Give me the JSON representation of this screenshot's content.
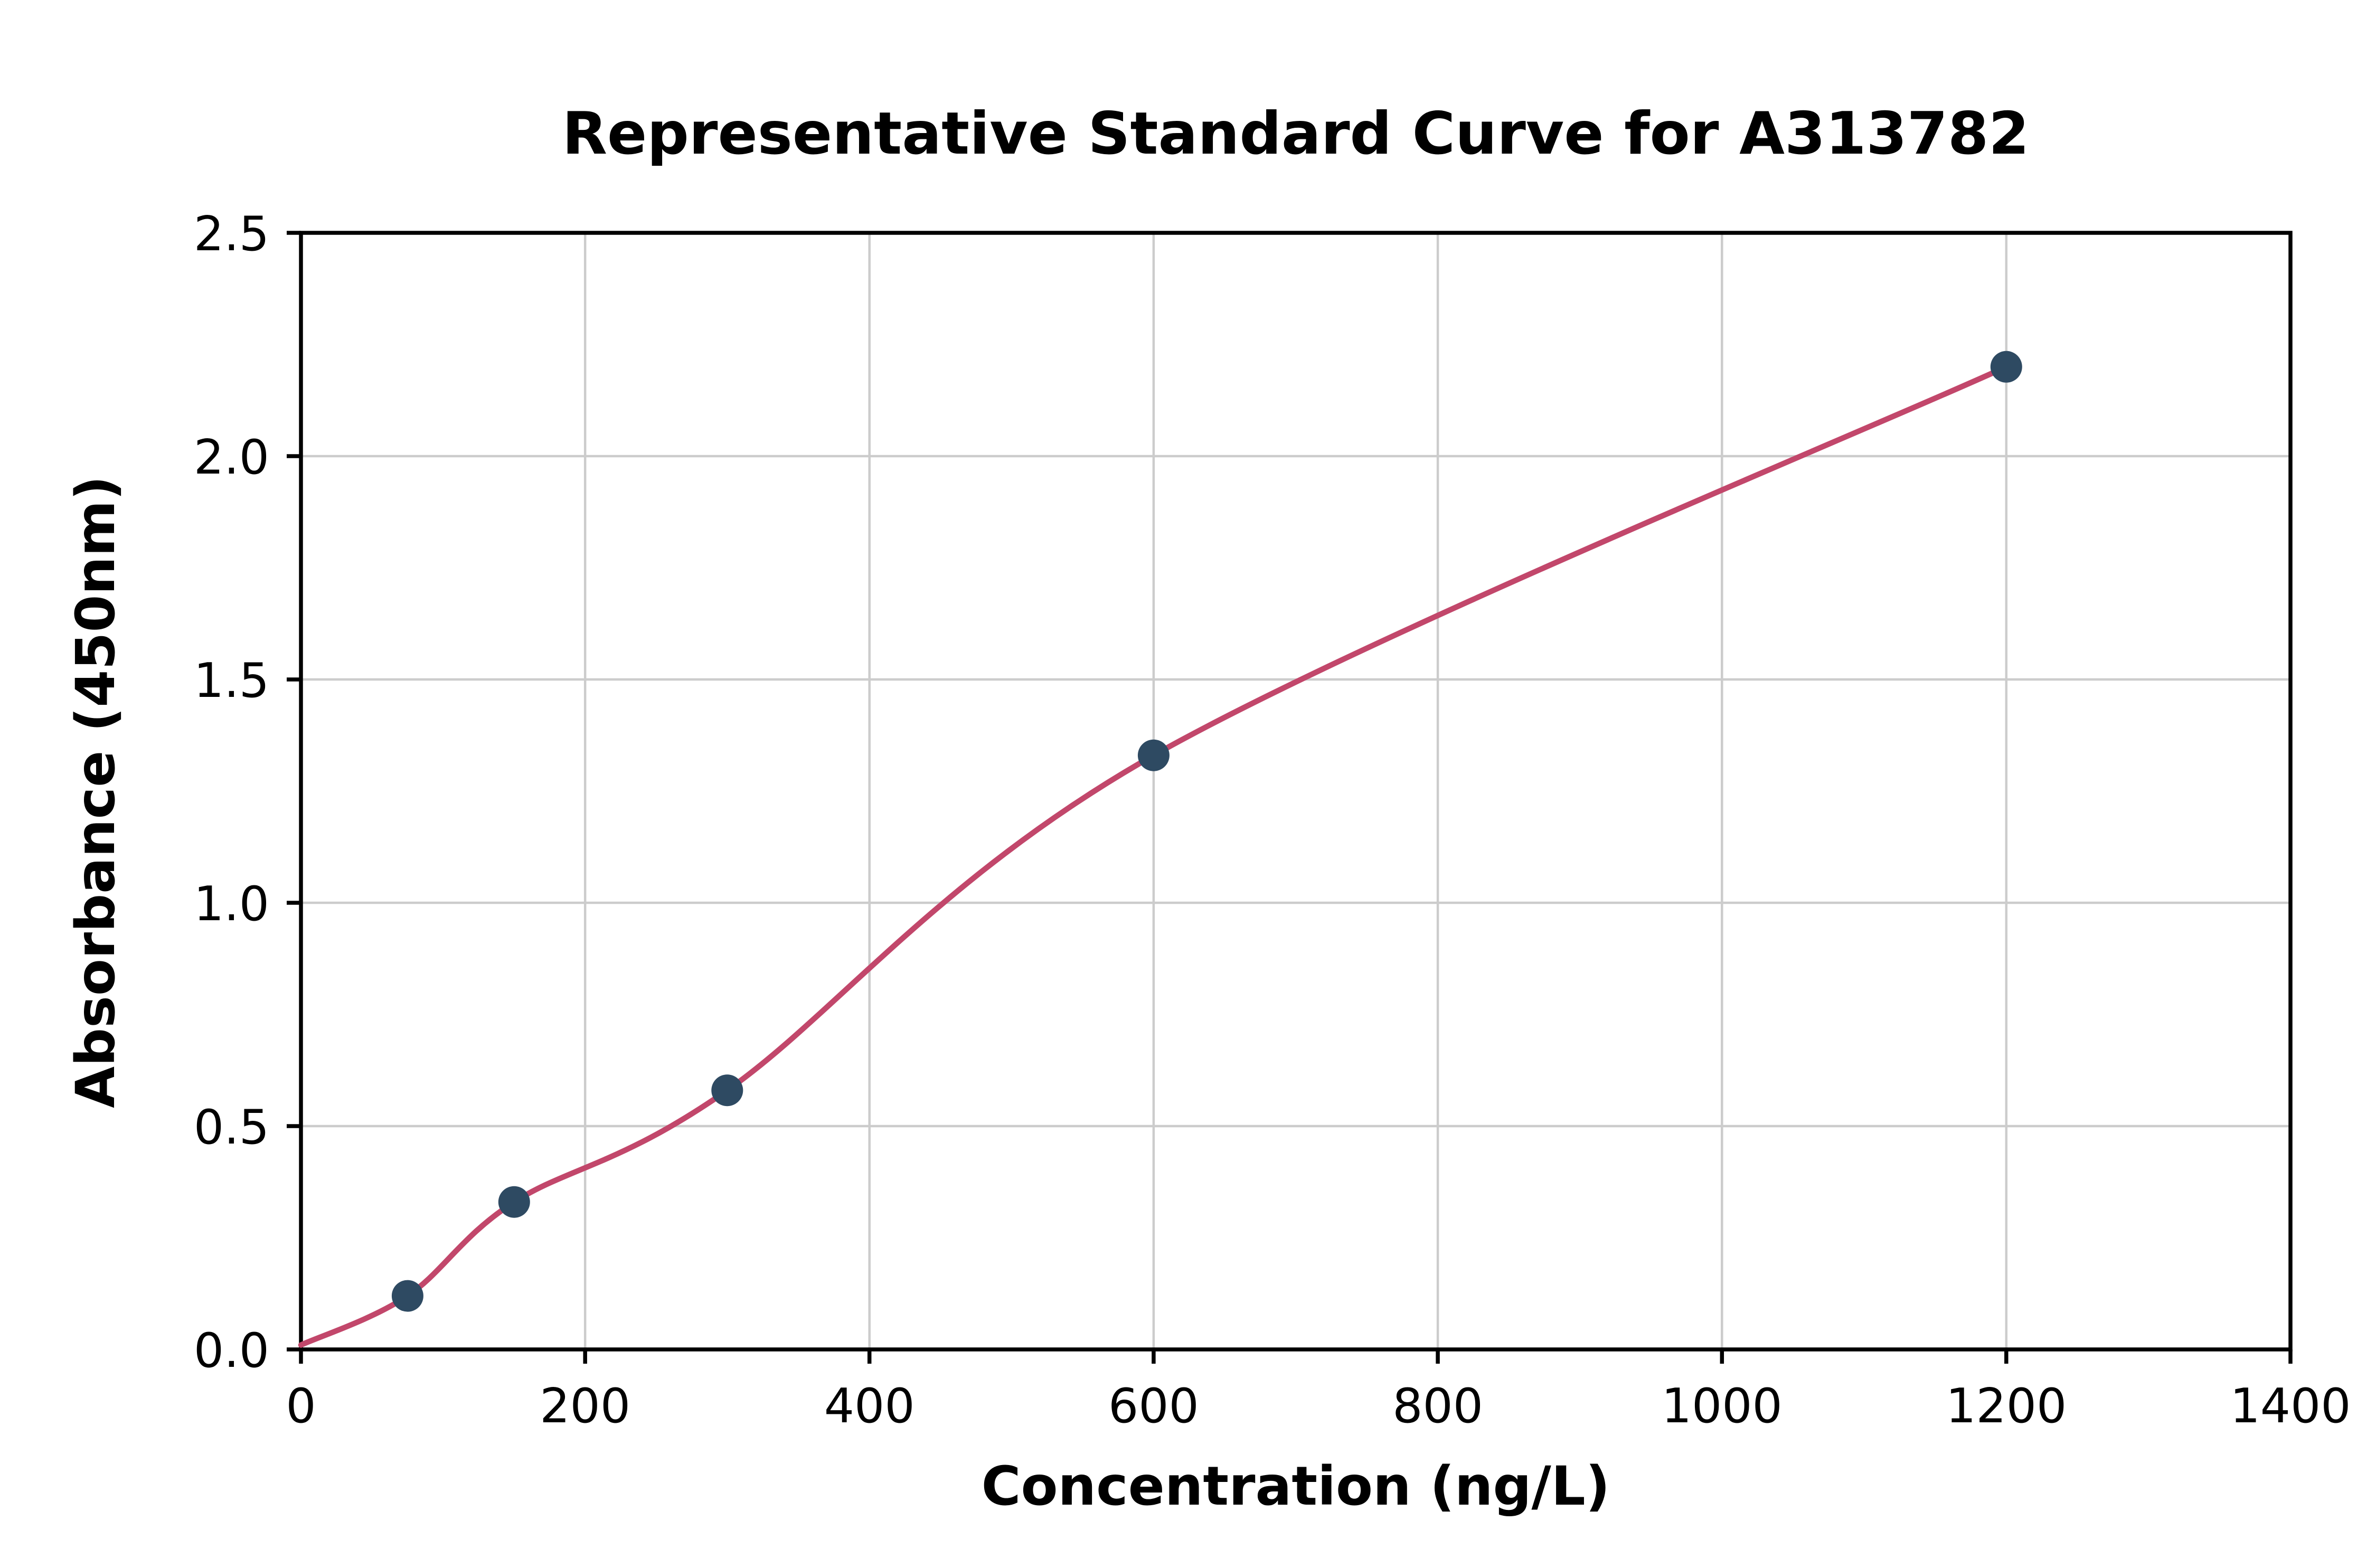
{
  "chart_data": {
    "type": "scatter",
    "title": "Representative Standard Curve for A313782",
    "xlabel": "Concentration (ng/L)",
    "ylabel": "Absorbance (450nm)",
    "xlim": [
      0,
      1400
    ],
    "ylim": [
      0,
      2.5
    ],
    "grid": true,
    "legend": "none",
    "x_ticks": [
      0,
      200,
      400,
      600,
      800,
      1000,
      1200,
      1400
    ],
    "x_tick_labels": [
      "0",
      "200",
      "400",
      "600",
      "800",
      "1000",
      "1200",
      "1400"
    ],
    "y_ticks": [
      0.0,
      0.5,
      1.0,
      1.5,
      2.0,
      2.5
    ],
    "y_tick_labels": [
      "0.0",
      "0.5",
      "1.0",
      "1.5",
      "2.0",
      "2.5"
    ],
    "points": [
      {
        "x": 75,
        "y": 0.12
      },
      {
        "x": 150,
        "y": 0.33
      },
      {
        "x": 300,
        "y": 0.58
      },
      {
        "x": 600,
        "y": 1.33
      },
      {
        "x": 1200,
        "y": 2.2
      }
    ],
    "curve_start": {
      "x": 0,
      "y": 0.01
    },
    "colors": {
      "curve": "#c2476b",
      "points": "#2e4a62",
      "grid": "#cccccc",
      "axis": "#000000",
      "background": "#ffffff"
    }
  }
}
